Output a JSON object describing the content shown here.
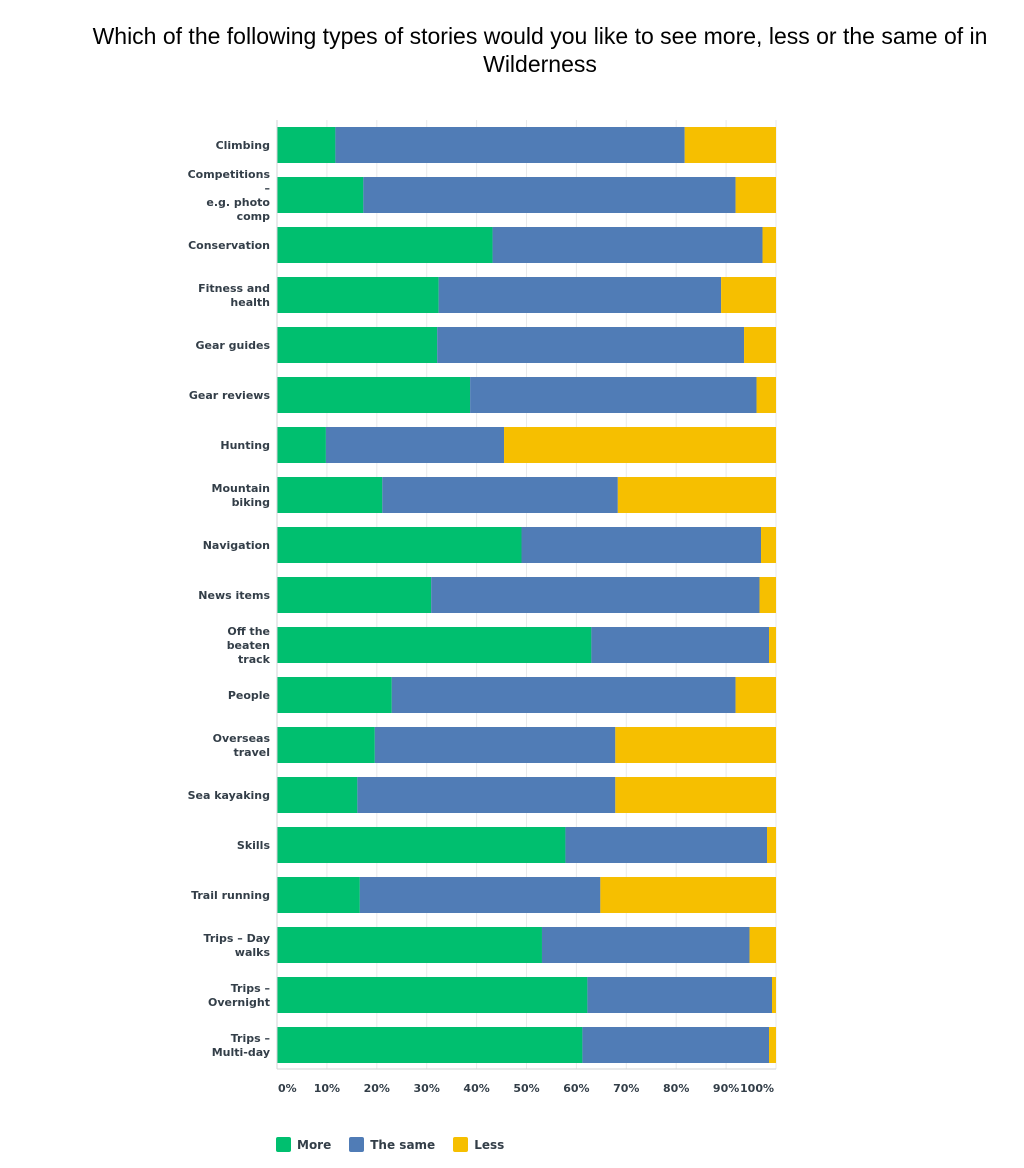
{
  "chart_data": {
    "type": "bar",
    "orientation": "horizontal",
    "stacked": true,
    "title": "Which of the following types of stories would you like to see more, less or the same of in Wilderness",
    "categories": [
      [
        "Climbing"
      ],
      [
        "Competitions",
        "–",
        "e.g. photo",
        "comp"
      ],
      [
        "Conservation"
      ],
      [
        "Fitness and",
        "health"
      ],
      [
        "Gear guides"
      ],
      [
        "Gear reviews"
      ],
      [
        "Hunting"
      ],
      [
        "Mountain",
        "biking"
      ],
      [
        "Navigation"
      ],
      [
        "News items"
      ],
      [
        "Off the",
        "beaten",
        "track"
      ],
      [
        "People"
      ],
      [
        "Overseas",
        "travel"
      ],
      [
        "Sea kayaking"
      ],
      [
        "Skills"
      ],
      [
        "Trail running"
      ],
      [
        "Trips – Day",
        "walks"
      ],
      [
        "Trips –",
        "Overnight"
      ],
      [
        "Trips –",
        "Multi-day"
      ]
    ],
    "series": [
      {
        "name": "More",
        "color": "#00bf6f",
        "values": [
          11.7,
          17.3,
          43.2,
          32.4,
          32.1,
          38.7,
          9.8,
          21.1,
          49.0,
          30.9,
          63.0,
          23.0,
          19.6,
          16.1,
          57.8,
          16.6,
          53.1,
          62.2,
          61.2
        ]
      },
      {
        "name": "The same",
        "color": "#507cb6",
        "values": [
          70.0,
          74.6,
          54.1,
          56.6,
          61.5,
          57.4,
          35.7,
          47.2,
          48.0,
          65.8,
          35.6,
          68.9,
          48.2,
          51.7,
          40.4,
          48.2,
          41.6,
          37.0,
          37.4
        ]
      },
      {
        "name": "Less",
        "color": "#f6bf00",
        "values": [
          18.3,
          8.1,
          2.7,
          11.0,
          6.4,
          3.9,
          54.5,
          31.7,
          3.0,
          3.3,
          1.4,
          8.1,
          32.2,
          32.2,
          1.8,
          35.2,
          5.3,
          0.8,
          1.4
        ]
      }
    ],
    "xlim": [
      0,
      100
    ],
    "xticks": [
      "0%",
      "10%",
      "20%",
      "30%",
      "40%",
      "50%",
      "60%",
      "70%",
      "80%",
      "90%",
      "100%"
    ],
    "grid": true,
    "legend_position": "bottom-left"
  }
}
